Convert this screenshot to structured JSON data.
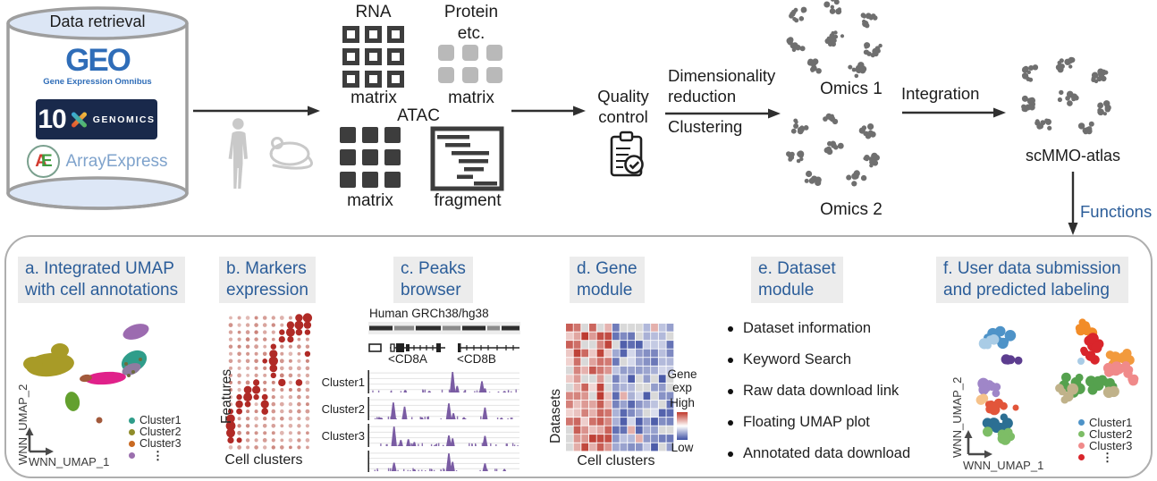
{
  "pipeline": {
    "cylinder_title": "Data retrieval",
    "geo": {
      "wordmark": "GEO",
      "subtitle": "Gene Expression Omnibus"
    },
    "tenx": {
      "number": "10",
      "name": "GENOMICS"
    },
    "arrayexpress": {
      "a": "A",
      "e": "E",
      "label": "ArrayExpress"
    },
    "rna": {
      "title": "RNA",
      "caption": "matrix"
    },
    "protein": {
      "title": "Protein",
      "subtitle": "etc.",
      "caption": "matrix"
    },
    "atac": {
      "title": "ATAC",
      "matrix_caption": "matrix",
      "fragment_caption": "fragment"
    },
    "quality_control": "Quality\ncontrol",
    "dimensionality_reduction": "Dimensionality\nreduction",
    "clustering": "Clustering",
    "omics1": "Omics 1",
    "omics2": "Omics 2",
    "integration": "Integration",
    "atlas": "scMMO-atlas",
    "functions": "Functions"
  },
  "panels": {
    "a": {
      "title": "a. Integrated UMAP\nwith cell annotations",
      "x_axis": "WNN_UMAP_1",
      "y_axis": "WNN_UMAP_2",
      "legend": [
        {
          "label": "Cluster1",
          "color": "#2f9d8a"
        },
        {
          "label": "Cluster2",
          "color": "#8f8c2a"
        },
        {
          "label": "Cluster3",
          "color": "#c96a22"
        },
        {
          "label": "",
          "color": "#9b6fae"
        }
      ],
      "ellipsis": "⋮"
    },
    "b": {
      "title": "b. Markers\nexpression",
      "y_axis": "Features",
      "x_axis": "Cell clusters"
    },
    "c": {
      "title": "c. Peaks\nbrowser",
      "genome": "Human GRCh38/hg38",
      "gene_left": "<CD8A",
      "gene_right": "<CD8B",
      "tracks": [
        "Cluster1",
        "Cluster2",
        "Cluster3",
        ""
      ]
    },
    "d": {
      "title": "d. Gene\nmodule",
      "y_axis": "Datasets",
      "x_axis": "Cell clusters",
      "legend_title": "Gene\nexp",
      "legend_high": "High",
      "legend_low": "Low"
    },
    "e": {
      "title": "e. Dataset\nmodule",
      "items": [
        "Dataset information",
        "Keyword Search",
        "Raw data download link",
        "Floating UMAP plot",
        "Annotated data download"
      ]
    },
    "f": {
      "title": "f. User data submission\nand predicted labeling",
      "x_axis": "WNN_UMAP_1",
      "y_axis": "WNN_UMAP_2",
      "legend": [
        {
          "label": "Cluster1",
          "color": "#4e93c8"
        },
        {
          "label": "Cluster2",
          "color": "#7dbd66"
        },
        {
          "label": "Cluster3",
          "color": "#f08a8a"
        },
        {
          "label": "",
          "color": "#d9252b"
        }
      ],
      "ellipsis": "⋮"
    }
  },
  "colors": {
    "accent_blue": "#2b5d99",
    "header_bg": "#ececec",
    "dark_gray": "#3d3d3d",
    "cell_gray": "#6f6f6f",
    "peak_purple": "#7a5ca3",
    "dotplot_red": "#b02a26",
    "dotplot_light": "#c5766c",
    "heat_red": "#bc3a30",
    "heat_blue": "#4a5aa8",
    "heat_gray": "#d9d9d9"
  }
}
